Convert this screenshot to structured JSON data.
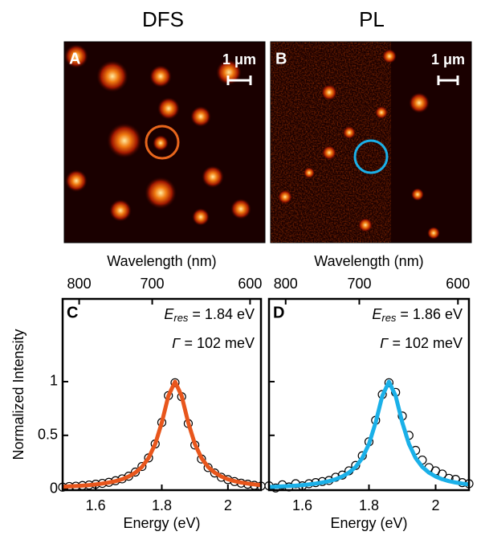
{
  "titles": [
    "DFS",
    "PL"
  ],
  "images": [
    {
      "label": "A",
      "scale_bar": "1 μm"
    },
    {
      "label": "B",
      "scale_bar": "1 μm"
    }
  ],
  "chart_data": [
    {
      "type": "line",
      "panel": "C",
      "x2label": "Wavelength (nm)",
      "x2ticks": [
        {
          "value": 1.55,
          "label": "800"
        },
        {
          "value": 1.771,
          "label": "700"
        },
        {
          "value": 2.067,
          "label": "600"
        }
      ],
      "xlabel": "Energy (eV)",
      "ylabel": "Normalized Intensity",
      "xlim": [
        1.5,
        2.1
      ],
      "xticks": [
        1.6,
        1.8,
        {
          "value": 2,
          "label": "2"
        }
      ],
      "ylim": [
        -0.01,
        1.77
      ],
      "yticks": [
        0,
        0.5,
        1
      ],
      "show_ytick_labels": true,
      "annotations": {
        "e_symbol": "E",
        "e_sub": "res",
        "e_text": " = 1.84 eV",
        "g_symbol": "Γ",
        "g_text": " = 102 meV"
      },
      "x": [
        1.5,
        1.52,
        1.54,
        1.56,
        1.58,
        1.6,
        1.62,
        1.64,
        1.66,
        1.68,
        1.7,
        1.72,
        1.74,
        1.76,
        1.78,
        1.8,
        1.82,
        1.84,
        1.86,
        1.88,
        1.9,
        1.92,
        1.94,
        1.96,
        1.98,
        2.0,
        2.02,
        2.04,
        2.06,
        2.08,
        2.1
      ],
      "series": [
        {
          "style": "markers",
          "color": "#000000",
          "values": [
            0.018,
            0.024,
            0.027,
            0.033,
            0.038,
            0.045,
            0.053,
            0.063,
            0.078,
            0.095,
            0.12,
            0.158,
            0.21,
            0.29,
            0.42,
            0.62,
            0.87,
            0.99,
            0.86,
            0.61,
            0.41,
            0.28,
            0.2,
            0.15,
            0.11,
            0.088,
            0.07,
            0.055,
            0.045,
            0.035,
            0.028
          ]
        },
        {
          "style": "line",
          "color": "#e8561c",
          "values": [
            0.022,
            0.025,
            0.028,
            0.032,
            0.037,
            0.043,
            0.051,
            0.061,
            0.074,
            0.092,
            0.117,
            0.153,
            0.206,
            0.289,
            0.419,
            0.619,
            0.867,
            1,
            0.867,
            0.619,
            0.419,
            0.289,
            0.206,
            0.153,
            0.117,
            0.092,
            0.074,
            0.061,
            0.051,
            0.043,
            0.037
          ]
        }
      ]
    },
    {
      "type": "line",
      "panel": "D",
      "x2label": "Wavelength (nm)",
      "x2ticks": [
        {
          "value": 1.55,
          "label": "800"
        },
        {
          "value": 1.771,
          "label": "700"
        },
        {
          "value": 2.067,
          "label": "600"
        }
      ],
      "xlabel": "Energy (eV)",
      "xlim": [
        1.5,
        2.1
      ],
      "xticks": [
        1.6,
        1.8,
        {
          "value": 2,
          "label": "2"
        }
      ],
      "ylim": [
        -0.01,
        1.77
      ],
      "yticks": [
        0,
        0.5,
        1
      ],
      "show_ytick_labels": false,
      "annotations": {
        "e_symbol": "E",
        "e_sub": "res",
        "e_text": " = 1.86 eV",
        "g_symbol": "Γ",
        "g_text": " = 102 meV"
      },
      "x": [
        1.5,
        1.52,
        1.54,
        1.56,
        1.58,
        1.6,
        1.62,
        1.64,
        1.66,
        1.68,
        1.7,
        1.72,
        1.74,
        1.76,
        1.78,
        1.8,
        1.82,
        1.84,
        1.86,
        1.88,
        1.9,
        1.92,
        1.94,
        1.96,
        1.98,
        2.0,
        2.02,
        2.04,
        2.06,
        2.08,
        2.1
      ],
      "series": [
        {
          "style": "markers",
          "color": "#000000",
          "values": [
            0.03,
            0.01,
            0.04,
            0.02,
            0.05,
            0.03,
            0.05,
            0.06,
            0.07,
            0.08,
            0.11,
            0.13,
            0.17,
            0.22,
            0.31,
            0.44,
            0.64,
            0.88,
            0.99,
            0.9,
            0.68,
            0.5,
            0.36,
            0.27,
            0.2,
            0.17,
            0.14,
            0.1,
            0.09,
            0.06,
            0.05
          ]
        },
        {
          "style": "line",
          "color": "#1ab0e8",
          "values": [
            0.02,
            0.022,
            0.025,
            0.028,
            0.032,
            0.037,
            0.043,
            0.051,
            0.061,
            0.074,
            0.092,
            0.117,
            0.153,
            0.206,
            0.289,
            0.419,
            0.619,
            0.867,
            1,
            0.867,
            0.619,
            0.419,
            0.289,
            0.206,
            0.153,
            0.117,
            0.092,
            0.074,
            0.061,
            0.051,
            0.043
          ]
        }
      ]
    }
  ]
}
